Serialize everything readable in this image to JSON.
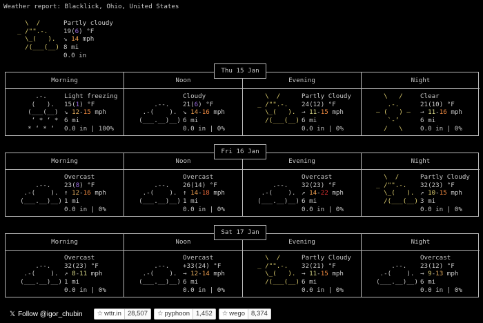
{
  "title": "Weather report: Blacklick, Ohio, United States",
  "current": {
    "art": "    \\  /\n  _ /\"\".-.\n    \\_(   ).\n    /(___(__)",
    "condition": "Partly cloudy",
    "temp": "19",
    "feels": "6",
    "unit": "°F",
    "wind_arrow": "↘",
    "wind": [
      {
        "v": "14",
        "c": "#f0a050"
      }
    ],
    "wind_unit": "mph",
    "visibility": "8 mi",
    "precip": "0.0 in"
  },
  "periods": [
    "Morning",
    "Noon",
    "Evening",
    "Night"
  ],
  "days": [
    {
      "label": "Thu 15 Jan",
      "segments": [
        {
          "type": "sleet",
          "condition": "Light freezing",
          "temp": "15",
          "feels": "1",
          "feels_color": "#9a6ae0",
          "wind_arrow": "↘",
          "wind": [
            {
              "v": "12",
              "c": "#e8b060"
            },
            {
              "v": "15",
              "c": "#f08a40"
            }
          ],
          "visibility": "6 mi",
          "precip": "0.0 in | 100%"
        },
        {
          "type": "cloudy",
          "condition": "Cloudy",
          "temp": "21",
          "feels": "6",
          "feels_color": "#9a6ae0",
          "wind_arrow": "↘",
          "wind": [
            {
              "v": "14",
              "c": "#f0a050"
            },
            {
              "v": "16",
              "c": "#f08a40"
            }
          ],
          "visibility": "6 mi",
          "precip": "0.0 in | 0%"
        },
        {
          "type": "partly",
          "condition": "Partly Cloudy",
          "temp": "24",
          "feels": "12",
          "wind_arrow": "→",
          "wind": [
            {
              "v": "11",
              "c": "#d7d787"
            },
            {
              "v": "15",
              "c": "#f08a40"
            }
          ],
          "visibility": "6 mi",
          "precip": "0.0 in | 0%"
        },
        {
          "type": "clear",
          "condition": "Clear",
          "temp": "21",
          "feels": "10",
          "wind_arrow": "→",
          "wind": [
            {
              "v": "11",
              "c": "#d7d787"
            },
            {
              "v": "16",
              "c": "#f08a40"
            }
          ],
          "visibility": "6 mi",
          "precip": "0.0 in | 0%"
        }
      ]
    },
    {
      "label": "Fri 16 Jan",
      "segments": [
        {
          "type": "cloudy",
          "condition": "Overcast",
          "temp": "23",
          "feels": "8",
          "feels_color": "#9a6ae0",
          "wind_arrow": "↑",
          "wind": [
            {
              "v": "12",
              "c": "#e8b060"
            },
            {
              "v": "16",
              "c": "#f08a40"
            }
          ],
          "visibility": "1 mi",
          "precip": "0.0 in | 0%"
        },
        {
          "type": "cloudy",
          "condition": "Overcast",
          "temp": "26",
          "feels": "14",
          "wind_arrow": "↑",
          "wind": [
            {
              "v": "14",
              "c": "#f0a050"
            },
            {
              "v": "18",
              "c": "#e8683a"
            }
          ],
          "visibility": "1 mi",
          "precip": "0.0 in | 0%"
        },
        {
          "type": "cloudy",
          "condition": "Overcast",
          "temp": "32",
          "feels": "23",
          "wind_arrow": "↗",
          "wind": [
            {
              "v": "14",
              "c": "#f0a050"
            },
            {
              "v": "22",
              "c": "#d83030"
            }
          ],
          "visibility": "6 mi",
          "precip": "0.0 in | 0%"
        },
        {
          "type": "partly",
          "condition": "Partly Cloudy",
          "temp": "32",
          "feels": "23",
          "wind_arrow": "↗",
          "wind": [
            {
              "v": "10",
              "c": "#e0d070"
            },
            {
              "v": "15",
              "c": "#f08a40"
            }
          ],
          "visibility": "3 mi",
          "precip": "0.0 in | 0%"
        }
      ]
    },
    {
      "label": "Sat 17 Jan",
      "segments": [
        {
          "type": "cloudy",
          "condition": "Overcast",
          "temp": "32",
          "feels": "23",
          "wind_arrow": "↗",
          "wind": [
            {
              "v": "8",
              "c": "#d7d787"
            },
            {
              "v": "11",
              "c": "#d7d787"
            }
          ],
          "visibility": "1 mi",
          "precip": "0.0 in | 0%"
        },
        {
          "type": "cloudy",
          "condition": "Overcast",
          "temp": "+33",
          "feels": "24",
          "wind_arrow": "→",
          "wind": [
            {
              "v": "12",
              "c": "#e8b060"
            },
            {
              "v": "14",
              "c": "#f0a050"
            }
          ],
          "visibility": "6 mi",
          "precip": "0.0 in | 0%"
        },
        {
          "type": "partly",
          "condition": "Partly Cloudy",
          "temp": "32",
          "feels": "21",
          "wind_arrow": "→",
          "wind": [
            {
              "v": "11",
              "c": "#d7d787"
            },
            {
              "v": "15",
              "c": "#f08a40"
            }
          ],
          "visibility": "6 mi",
          "precip": "0.0 in | 0%"
        },
        {
          "type": "cloudy",
          "condition": "Overcast",
          "temp": "23",
          "feels": "12",
          "wind_arrow": "→",
          "wind": [
            {
              "v": "9",
              "c": "#e0d070"
            },
            {
              "v": "13",
              "c": "#e8b060"
            }
          ],
          "visibility": "6 mi",
          "precip": "0.0 in | 0%"
        }
      ]
    }
  ],
  "art": {
    "partly": [
      "    \\  /",
      "  _ /\"\".-.",
      "    \\_(   ).",
      "    /(___(__)",
      ""
    ],
    "cloudy": [
      "",
      "      .--.",
      "   .-(    ).",
      "  (___.__)__)",
      ""
    ],
    "clear": [
      "    \\   /",
      "     .-.",
      "  ― (   ) ―",
      "     `-’",
      "    /   \\"
    ],
    "sleet": [
      "      .-.",
      "     (   ).",
      "    (___(__)",
      "     ‘ * ‘ *",
      "    * ‘ * ‘"
    ]
  },
  "wind_unit": "mph",
  "temp_unit": "°F",
  "footer": {
    "follow": "Follow @igor_chubin",
    "repos": [
      {
        "name": "wttr.in",
        "stars": "28,507"
      },
      {
        "name": "pyphoon",
        "stars": "1,452"
      },
      {
        "name": "wego",
        "stars": "8,374"
      }
    ]
  }
}
